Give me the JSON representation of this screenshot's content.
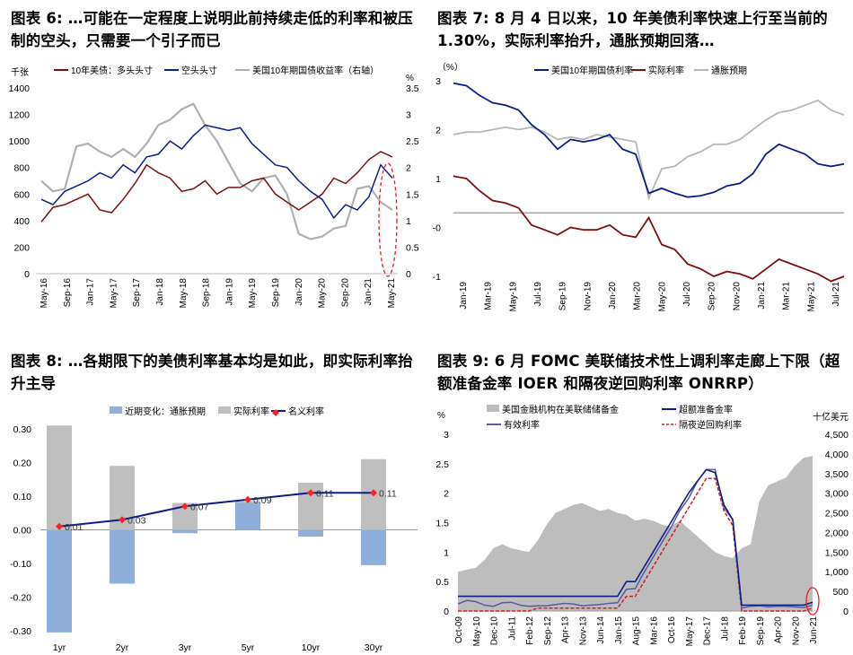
{
  "panels": {
    "p6_title": "图表 6: …可能在一定程度上说明此前持续走低的利率和被压制的空头，只需要一个引子而已",
    "p7_title": "图表 7: 8 月 4 日以来，10 年美债利率快速上行至当前的 1.30%，实际利率抬升，通胀预期回落…",
    "p8_title": "图表 8: …各期限下的美债利率基本均是如此，即实际利率抬升主导",
    "p9_title": "图表 9: 6 月 FOMC 美联储技术性上调利率走廊上下限（超额准备金率 IOER 和隔夜逆回购利率 ONRRP）"
  },
  "chart_data": [
    {
      "id": "fig6",
      "type": "line",
      "left_unit": "千张",
      "right_unit": "%",
      "ylim": [
        0,
        1400
      ],
      "yticks": [
        "0",
        "200",
        "400",
        "600",
        "800",
        "1000",
        "1200",
        "1400"
      ],
      "y2lim": [
        0,
        3.5
      ],
      "y2ticks": [
        "0",
        "0.5",
        "1",
        "1.5",
        "2",
        "2.5",
        "3",
        "3.5"
      ],
      "xticks": [
        "May-16",
        "Sep-16",
        "Jan-17",
        "May-17",
        "Sep-17",
        "Jan-18",
        "May-18",
        "Sep-18",
        "Jan-19",
        "May-19",
        "Sep-19",
        "Jan-20",
        "May-20",
        "Sep-20",
        "Jan-21",
        "May-21"
      ],
      "series": [
        {
          "name": "10年美债：多头头寸",
          "color": "#7b1010",
          "axis": "left",
          "values": [
            390,
            500,
            520,
            560,
            600,
            480,
            460,
            560,
            680,
            820,
            760,
            720,
            620,
            640,
            700,
            600,
            650,
            650,
            700,
            720,
            600,
            540,
            480,
            540,
            600,
            720,
            680,
            760,
            860,
            920,
            880
          ]
        },
        {
          "name": "空头头寸",
          "color": "#0b1f8a",
          "axis": "left",
          "values": [
            560,
            520,
            620,
            660,
            700,
            760,
            720,
            820,
            760,
            880,
            900,
            1000,
            940,
            1040,
            1120,
            1100,
            1080,
            1100,
            980,
            900,
            820,
            800,
            700,
            620,
            560,
            420,
            520,
            480,
            580,
            820,
            720
          ]
        },
        {
          "name": "美国10年期国债收益率（右轴）",
          "color": "#b0b0b0",
          "axis": "right",
          "values": [
            1.75,
            1.55,
            1.6,
            2.4,
            2.45,
            2.3,
            2.2,
            2.35,
            2.2,
            2.45,
            2.8,
            2.9,
            3.1,
            3.2,
            2.8,
            2.5,
            2.1,
            1.7,
            1.55,
            1.8,
            1.85,
            1.5,
            0.75,
            0.65,
            0.7,
            0.85,
            0.9,
            1.6,
            1.65,
            1.35,
            1.2
          ]
        }
      ]
    },
    {
      "id": "fig7",
      "type": "line",
      "unit": "（%）",
      "ylim": [
        -1,
        3
      ],
      "yticks": [
        "-1",
        "-0",
        "1",
        "2",
        "3"
      ],
      "xticks": [
        "Jan-19",
        "Mar-19",
        "May-19",
        "Jul-19",
        "Sep-19",
        "Nov-19",
        "Jan-20",
        "Mar-20",
        "May-20",
        "Jul-20",
        "Sep-20",
        "Nov-20",
        "Jan-21",
        "Mar-21",
        "May-21",
        "Jul-21"
      ],
      "series": [
        {
          "name": "美国10年期国债利率",
          "color": "#0b1f8a",
          "values": [
            2.95,
            2.9,
            2.7,
            2.55,
            2.5,
            2.4,
            2.1,
            1.9,
            1.6,
            1.8,
            1.75,
            1.8,
            1.9,
            1.6,
            1.5,
            0.7,
            0.8,
            0.7,
            0.62,
            0.65,
            0.72,
            0.85,
            0.9,
            1.1,
            1.5,
            1.7,
            1.6,
            1.5,
            1.3,
            1.25,
            1.3
          ]
        },
        {
          "name": "实际利率",
          "color": "#7b1010",
          "values": [
            1.05,
            1.0,
            0.75,
            0.55,
            0.5,
            0.4,
            0.05,
            -0.05,
            -0.15,
            0.0,
            -0.05,
            -0.05,
            0.05,
            -0.15,
            -0.2,
            0.2,
            -0.35,
            -0.45,
            -0.75,
            -0.85,
            -1.0,
            -0.9,
            -0.95,
            -1.05,
            -0.85,
            -0.65,
            -0.75,
            -0.85,
            -0.95,
            -1.1,
            -1.0
          ]
        },
        {
          "name": "通胀预期",
          "color": "#b8b8b8",
          "values": [
            1.9,
            1.95,
            1.95,
            2.0,
            2.05,
            2.0,
            2.05,
            1.95,
            1.8,
            1.85,
            1.8,
            1.9,
            1.85,
            1.8,
            1.75,
            0.6,
            1.2,
            1.25,
            1.45,
            1.55,
            1.7,
            1.7,
            1.8,
            2.0,
            2.2,
            2.35,
            2.4,
            2.5,
            2.6,
            2.4,
            2.3
          ]
        }
      ]
    },
    {
      "id": "fig8",
      "type": "bar",
      "categories": [
        "1yr",
        "2yr",
        "3yr",
        "5yr",
        "10yr",
        "30yr"
      ],
      "ylim": [
        -0.3,
        0.3
      ],
      "yticks": [
        "0.30",
        "0.20",
        "0.10",
        "0.00",
        "-0.10",
        "-0.20",
        "-0.30"
      ],
      "series": [
        {
          "name": "近期变化：通胀预期",
          "color": "#8fb0db",
          "values": [
            -0.305,
            -0.16,
            -0.01,
            0.08,
            -0.02,
            -0.105
          ]
        },
        {
          "name": "实际利率",
          "color": "#bfbfbf",
          "values": [
            0.31,
            0.19,
            0.08,
            0.085,
            0.14,
            0.21
          ]
        },
        {
          "name": "名义利率",
          "color": "#0b1f8a",
          "marker": "#ff2020",
          "values": [
            0.01,
            0.03,
            0.07,
            0.09,
            0.11,
            0.11
          ]
        }
      ],
      "data_labels": [
        "0.01",
        "0.03",
        "0.07",
        "0.09",
        "0.11",
        "0.11"
      ]
    },
    {
      "id": "fig9",
      "type": "area",
      "left_unit": "%",
      "right_unit": "十亿美元",
      "ylim": [
        0,
        3
      ],
      "yticks": [
        "0",
        "0.5",
        "1",
        "1.5",
        "2",
        "2.5",
        "3"
      ],
      "y2lim": [
        0,
        4500
      ],
      "y2ticks": [
        "0",
        "500",
        "1,000",
        "1,500",
        "2,000",
        "2,500",
        "3,000",
        "3,500",
        "4,000",
        "4,500"
      ],
      "xticks": [
        "Oct-09",
        "May-10",
        "Dec-10",
        "Jul-11",
        "Feb-12",
        "Sep-12",
        "Apr-13",
        "Nov-13",
        "Jun-14",
        "Jan-15",
        "Aug-15",
        "Mar-16",
        "Oct-16",
        "May-17",
        "Dec-17",
        "Jul-18",
        "Feb-19",
        "Sep-19",
        "Apr-20",
        "Nov-20",
        "Jun-21"
      ],
      "series": [
        {
          "name": "美国金融机构在美联储储备金",
          "color": "#bdbdbd",
          "axis": "right",
          "values": [
            1000,
            1050,
            1100,
            1300,
            1600,
            1700,
            1600,
            1550,
            1500,
            1800,
            2200,
            2500,
            2600,
            2700,
            2750,
            2650,
            2550,
            2600,
            2500,
            2450,
            2300,
            2350,
            2300,
            2200,
            2150,
            2300,
            2100,
            1900,
            1700,
            1500,
            1400,
            1350,
            1600,
            1700,
            2800,
            3200,
            3300,
            3400,
            3700,
            3900,
            3950
          ]
        },
        {
          "name": "超额准备金率",
          "color": "#0b1f8a",
          "axis": "left",
          "values": [
            0.25,
            0.25,
            0.25,
            0.25,
            0.25,
            0.25,
            0.25,
            0.25,
            0.25,
            0.25,
            0.25,
            0.25,
            0.25,
            0.25,
            0.25,
            0.25,
            0.25,
            0.25,
            0.25,
            0.5,
            0.5,
            0.75,
            1.0,
            1.25,
            1.5,
            1.75,
            2.0,
            2.2,
            2.4,
            2.35,
            1.8,
            1.55,
            0.1,
            0.1,
            0.1,
            0.1,
            0.1,
            0.1,
            0.1,
            0.1,
            0.15
          ]
        },
        {
          "name": "有效利率",
          "color": "#5a5aa0",
          "axis": "left",
          "values": [
            0.12,
            0.18,
            0.16,
            0.1,
            0.08,
            0.14,
            0.15,
            0.1,
            0.08,
            0.09,
            0.09,
            0.11,
            0.13,
            0.12,
            0.09,
            0.1,
            0.11,
            0.13,
            0.14,
            0.37,
            0.38,
            0.66,
            0.91,
            1.16,
            1.41,
            1.7,
            1.91,
            2.2,
            2.4,
            2.4,
            1.75,
            1.55,
            0.05,
            0.08,
            0.09,
            0.07,
            0.08,
            0.08,
            0.07,
            0.06,
            0.1
          ]
        },
        {
          "name": "隔夜逆回购利率",
          "color": "#d02020",
          "axis": "left",
          "values": [
            0,
            0,
            0,
            0,
            0,
            0,
            0,
            0,
            0,
            0.05,
            0.05,
            0.05,
            0.05,
            0.05,
            0.05,
            0.05,
            0.05,
            0.05,
            0.05,
            0.25,
            0.25,
            0.5,
            0.75,
            1.0,
            1.25,
            1.5,
            1.75,
            2.0,
            2.25,
            2.25,
            1.7,
            1.45,
            0,
            0,
            0,
            0,
            0,
            0,
            0,
            0,
            0.05
          ]
        }
      ]
    }
  ]
}
